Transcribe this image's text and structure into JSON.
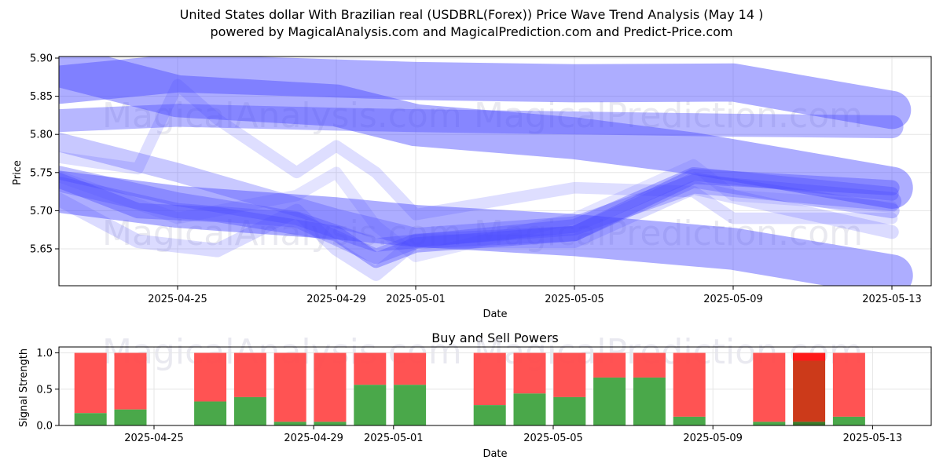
{
  "title_line1": "United States dollar With Brazilian real (USDBRL(Forex)) Price Wave Trend Analysis (May 14 )",
  "title_line2": "powered by MagicalAnalysis.com and MagicalPrediction.com and Predict-Price.com",
  "watermarks": [
    "MagicalAnalysis.com",
    "MagicalPrediction.com"
  ],
  "colors": {
    "wave": "#4a4aff",
    "buy": "#4aa84a",
    "sell": "#ff4a4a",
    "sell_strong": "#ff1a1a",
    "buy_dark": "#cc3a1a"
  },
  "chart_data": [
    {
      "type": "line",
      "xlabel": "Date",
      "ylabel": "Price",
      "x_ticks": [
        "2025-04-25",
        "2025-04-29",
        "2025-05-01",
        "2025-05-05",
        "2025-05-09",
        "2025-05-13"
      ],
      "y_ticks": [
        "5.65",
        "5.70",
        "5.75",
        "5.80",
        "5.85",
        "5.90"
      ],
      "xlim": [
        "2025-04-22",
        "2025-05-14"
      ],
      "ylim": [
        5.6,
        5.9
      ],
      "grid": true,
      "series": [
        {
          "dates": [
            "2025-04-22",
            "2025-04-25",
            "2025-04-28",
            "2025-05-01",
            "2025-05-05",
            "2025-05-09",
            "2025-05-13"
          ],
          "values": [
            5.865,
            5.88,
            5.875,
            5.87,
            5.867,
            5.868,
            5.832
          ],
          "width": 0.05,
          "opacity": 0.45
        },
        {
          "dates": [
            "2025-04-22",
            "2025-04-25",
            "2025-04-29",
            "2025-05-01",
            "2025-05-05",
            "2025-05-08",
            "2025-05-13"
          ],
          "values": [
            5.89,
            5.85,
            5.838,
            5.812,
            5.795,
            5.775,
            5.73
          ],
          "width": 0.055,
          "opacity": 0.45
        },
        {
          "dates": [
            "2025-04-22",
            "2025-04-25",
            "2025-04-29",
            "2025-05-01",
            "2025-05-05",
            "2025-05-09",
            "2025-05-13"
          ],
          "values": [
            5.818,
            5.825,
            5.82,
            5.818,
            5.815,
            5.812,
            5.81
          ],
          "width": 0.03,
          "opacity": 0.4
        },
        {
          "dates": [
            "2025-04-22",
            "2025-04-25",
            "2025-04-29",
            "2025-05-01",
            "2025-05-05",
            "2025-05-09",
            "2025-05-13"
          ],
          "values": [
            5.725,
            5.705,
            5.69,
            5.68,
            5.668,
            5.65,
            5.615
          ],
          "width": 0.055,
          "opacity": 0.45
        },
        {
          "dates": [
            "2025-04-22",
            "2025-04-25",
            "2025-04-27",
            "2025-04-29",
            "2025-05-01",
            "2025-05-05",
            "2025-05-08",
            "2025-05-13"
          ],
          "values": [
            5.79,
            5.75,
            5.72,
            5.69,
            5.665,
            5.68,
            5.735,
            5.712
          ],
          "width": 0.025,
          "opacity": 0.3
        },
        {
          "dates": [
            "2025-04-22",
            "2025-04-24",
            "2025-04-26",
            "2025-04-29",
            "2025-04-30",
            "2025-05-01",
            "2025-05-05",
            "2025-05-08",
            "2025-05-13"
          ],
          "values": [
            5.74,
            5.7,
            5.695,
            5.67,
            5.635,
            5.655,
            5.67,
            5.745,
            5.73
          ],
          "width": 0.02,
          "opacity": 0.4
        },
        {
          "dates": [
            "2025-04-22",
            "2025-04-25",
            "2025-04-28",
            "2025-04-30",
            "2025-05-01",
            "2025-05-05",
            "2025-05-08",
            "2025-05-13"
          ],
          "values": [
            5.75,
            5.715,
            5.69,
            5.655,
            5.66,
            5.68,
            5.748,
            5.722
          ],
          "width": 0.018,
          "opacity": 0.35
        },
        {
          "dates": [
            "2025-04-22",
            "2025-04-24",
            "2025-04-25",
            "2025-04-26",
            "2025-04-28",
            "2025-04-29",
            "2025-04-30",
            "2025-05-01",
            "2025-05-05",
            "2025-05-08",
            "2025-05-09",
            "2025-05-13"
          ],
          "values": [
            5.77,
            5.755,
            5.865,
            5.82,
            5.75,
            5.785,
            5.75,
            5.695,
            5.73,
            5.725,
            5.69,
            5.69
          ],
          "width": 0.015,
          "opacity": 0.18
        },
        {
          "dates": [
            "2025-04-22",
            "2025-04-24",
            "2025-04-26",
            "2025-04-28",
            "2025-04-29",
            "2025-04-30",
            "2025-05-01",
            "2025-05-05",
            "2025-05-08",
            "2025-05-13"
          ],
          "values": [
            5.715,
            5.66,
            5.648,
            5.7,
            5.65,
            5.617,
            5.66,
            5.66,
            5.73,
            5.672
          ],
          "width": 0.018,
          "opacity": 0.2
        },
        {
          "dates": [
            "2025-04-22",
            "2025-04-25",
            "2025-04-28",
            "2025-04-29",
            "2025-04-30",
            "2025-05-01",
            "2025-05-05",
            "2025-05-08",
            "2025-05-09",
            "2025-05-13"
          ],
          "values": [
            5.745,
            5.69,
            5.72,
            5.75,
            5.68,
            5.64,
            5.69,
            5.76,
            5.72,
            5.705
          ],
          "width": 0.015,
          "opacity": 0.15
        },
        {
          "dates": [
            "2025-04-22",
            "2025-04-25",
            "2025-04-28",
            "2025-04-30",
            "2025-05-01",
            "2025-05-05",
            "2025-05-08",
            "2025-05-13"
          ],
          "values": [
            5.735,
            5.7,
            5.688,
            5.64,
            5.66,
            5.67,
            5.74,
            5.7
          ],
          "width": 0.02,
          "opacity": 0.3
        }
      ]
    },
    {
      "type": "bar",
      "title": "Buy and Sell Powers",
      "xlabel": "Date",
      "ylabel": "Signal Strength",
      "x_ticks": [
        "2025-04-25",
        "2025-04-29",
        "2025-05-01",
        "2025-05-05",
        "2025-05-09",
        "2025-05-13"
      ],
      "y_ticks": [
        "0.0",
        "0.5",
        "1.0"
      ],
      "ylim": [
        0,
        1.05
      ],
      "categories": [
        "2025-04-24",
        "2025-04-25",
        "2025-04-27",
        "2025-04-28",
        "2025-04-29",
        "2025-04-30",
        "2025-05-01",
        "2025-05-02",
        "2025-05-04",
        "2025-05-05",
        "2025-05-06",
        "2025-05-07",
        "2025-05-08",
        "2025-05-09",
        "2025-05-11",
        "2025-05-12",
        "2025-05-13"
      ],
      "series": [
        {
          "name": "Buy",
          "values": [
            0.17,
            0.22,
            0.33,
            0.39,
            0.05,
            0.05,
            0.56,
            0.56,
            0.28,
            0.44,
            0.39,
            0.66,
            0.66,
            0.12,
            0.05,
            0.05,
            0.12
          ]
        },
        {
          "name": "Sell",
          "values": [
            0.83,
            0.78,
            0.67,
            0.61,
            0.95,
            0.95,
            0.44,
            0.44,
            0.72,
            0.56,
            0.61,
            0.34,
            0.34,
            0.88,
            0.95,
            0.95,
            0.88
          ]
        }
      ],
      "highlight_index": 15
    }
  ]
}
